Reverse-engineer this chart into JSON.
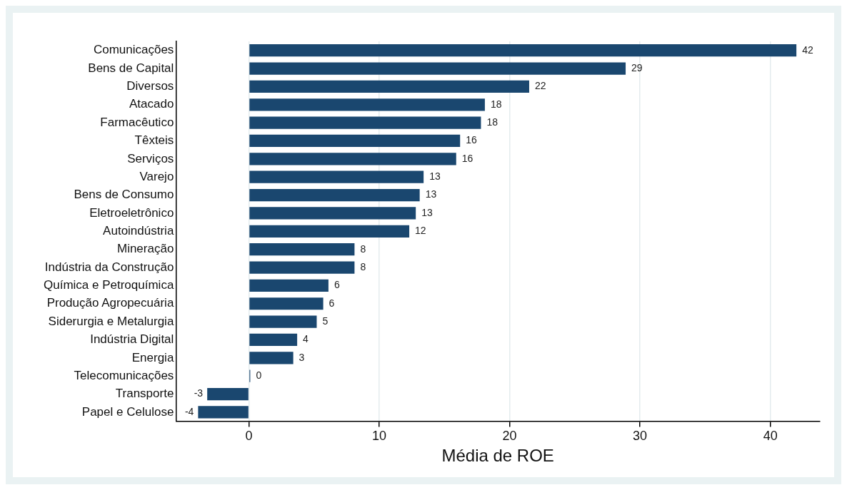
{
  "chart_data": {
    "type": "bar",
    "orientation": "horizontal",
    "xlabel": "Média de ROE",
    "categories": [
      "Comunicações",
      "Bens de Capital",
      "Diversos",
      "Atacado",
      "Farmacêutico",
      "Têxteis",
      "Serviços",
      "Varejo",
      "Bens de Consumo",
      "Eletroeletrônico",
      "Autoindústria",
      "Mineração",
      "Indústria da Construção",
      "Química e Petroquímica",
      "Produção Agropecuária",
      "Siderurgia e Metalurgia",
      "Indústria Digital",
      "Energia",
      "Telecomunicações",
      "Transporte",
      "Papel e Celulose"
    ],
    "values": [
      42.0,
      28.9,
      21.5,
      18.1,
      17.8,
      16.2,
      15.9,
      13.4,
      13.1,
      12.8,
      12.3,
      8.1,
      8.1,
      6.1,
      5.7,
      5.2,
      3.7,
      3.4,
      0.1,
      -3.2,
      -3.9
    ],
    "value_labels": [
      "42",
      "29",
      "22",
      "18",
      "18",
      "16",
      "16",
      "13",
      "13",
      "13",
      "12",
      "8",
      "8",
      "6",
      "6",
      "5",
      "4",
      "3",
      "0",
      "-3",
      "-4"
    ],
    "color": "#1a476f",
    "xlim": [
      -5.6,
      43.8
    ],
    "xticks": [
      0,
      10,
      20,
      30,
      40
    ],
    "grid": "x",
    "legend": false
  }
}
